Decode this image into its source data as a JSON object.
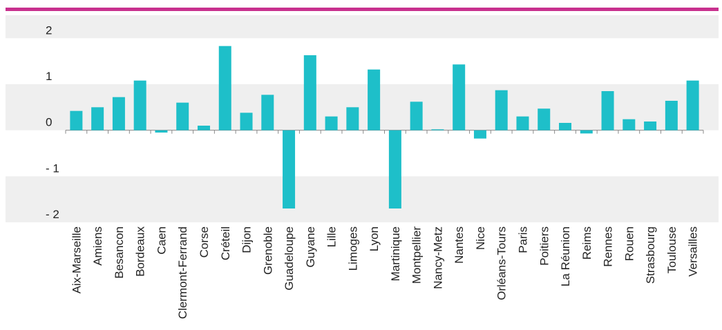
{
  "chart_data": {
    "type": "bar",
    "categories": [
      "Aix-Marseille",
      "Amiens",
      "Besancon",
      "Bordeaux",
      "Caen",
      "Clermont-Ferrand",
      "Corse",
      "Créteil",
      "Dijon",
      "Grenoble",
      "Guadeloupe",
      "Guyane",
      "Lille",
      "Limoges",
      "Lyon",
      "Martinique",
      "Montpellier",
      "Nancy-Metz",
      "Nantes",
      "Nice",
      "Orléans-Tours",
      "Paris",
      "Poitiers",
      "La Réunion",
      "Reims",
      "Rennes",
      "Rouen",
      "Strasbourg",
      "Toulouse",
      "Versailles"
    ],
    "values": [
      0.42,
      0.5,
      0.72,
      1.08,
      -0.05,
      0.6,
      0.1,
      1.83,
      0.38,
      0.77,
      -1.7,
      1.63,
      0.3,
      0.5,
      1.32,
      -1.7,
      0.62,
      0.02,
      1.43,
      -0.18,
      0.87,
      0.3,
      0.47,
      0.16,
      -0.07,
      0.85,
      0.24,
      0.19,
      0.64,
      1.08
    ],
    "color": "#1ebfc9",
    "ylim": [
      -2,
      2.5
    ],
    "yticks": [
      {
        "value": -2,
        "label": "- 2"
      },
      {
        "value": -1,
        "label": "- 1"
      },
      0,
      1,
      2
    ],
    "band_color": "#efefef",
    "accent_color": "#c8318e"
  }
}
